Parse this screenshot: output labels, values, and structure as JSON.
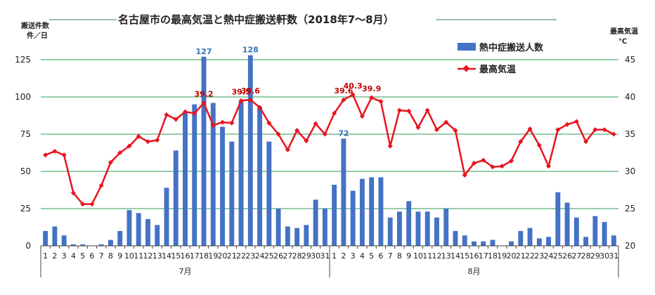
{
  "chart_data": {
    "type": "bar+line",
    "title": "名古屋市の最高気温と熱中症搬送軒数（2018年7〜8月）",
    "left_axis_title": [
      "搬送件数",
      "件／日"
    ],
    "right_axis_title": [
      "最高気温",
      "℃"
    ],
    "left_ylim": [
      0,
      125
    ],
    "left_ticks": [
      "0",
      "25",
      "50",
      "75",
      "100",
      "125"
    ],
    "right_ylim": [
      20,
      45
    ],
    "right_ticks": [
      "20",
      "25",
      "30",
      "35",
      "40",
      "45"
    ],
    "grid": true,
    "legend_position": "top-right",
    "months": [
      "7月",
      "8月"
    ],
    "categories": [
      "1",
      "2",
      "3",
      "4",
      "5",
      "6",
      "7",
      "8",
      "9",
      "10",
      "11",
      "12",
      "13",
      "14",
      "15",
      "16",
      "17",
      "18",
      "19",
      "20",
      "21",
      "22",
      "23",
      "24",
      "25",
      "26",
      "27",
      "28",
      "29",
      "30",
      "31",
      "1",
      "2",
      "3",
      "4",
      "5",
      "6",
      "7",
      "8",
      "9",
      "10",
      "11",
      "12",
      "13",
      "14",
      "15",
      "16",
      "17",
      "18",
      "19",
      "20",
      "21",
      "22",
      "23",
      "24",
      "25",
      "26",
      "27",
      "28",
      "29",
      "30",
      "31"
    ],
    "series": [
      {
        "name": "熱中症搬送人数",
        "kind": "bar",
        "axis": "left",
        "color": "#4472c4",
        "values": [
          10,
          13,
          7,
          1,
          1,
          0,
          1,
          4,
          10,
          24,
          22,
          18,
          14,
          39,
          64,
          90,
          95,
          127,
          96,
          80,
          70,
          97,
          128,
          93,
          70,
          25,
          13,
          12,
          14,
          31,
          25,
          41,
          72,
          37,
          45,
          46,
          46,
          19,
          23,
          30,
          23,
          23,
          19,
          25,
          10,
          7,
          3,
          3,
          4,
          0,
          3,
          10,
          12,
          5,
          6,
          36,
          29,
          19,
          6,
          20,
          16,
          7
        ]
      },
      {
        "name": "最高気温",
        "kind": "line",
        "axis": "right",
        "color": "#e8141e",
        "values": [
          32.2,
          32.7,
          32.2,
          27.1,
          25.6,
          25.6,
          28.1,
          31.2,
          32.5,
          33.4,
          34.7,
          34.0,
          34.2,
          37.6,
          37.0,
          38.0,
          37.8,
          39.2,
          36.2,
          36.6,
          36.5,
          39.5,
          39.6,
          38.6,
          36.5,
          35.0,
          32.9,
          35.5,
          34.1,
          36.4,
          35.0,
          37.8,
          39.6,
          40.3,
          37.4,
          39.9,
          39.4,
          33.4,
          38.2,
          38.1,
          35.9,
          38.2,
          35.6,
          36.6,
          35.5,
          29.5,
          31.1,
          31.5,
          30.6,
          30.7,
          31.4,
          34.0,
          35.7,
          33.5,
          30.7,
          35.6,
          36.3,
          36.7,
          34.0,
          35.6,
          35.6,
          35.0
        ]
      }
    ],
    "data_labels": {
      "bar": [
        {
          "index": 17,
          "text": "127"
        },
        {
          "index": 22,
          "text": "128"
        },
        {
          "index": 32,
          "text": "72"
        }
      ],
      "line": [
        {
          "index": 17,
          "text": "39.2"
        },
        {
          "index": 21,
          "text": "39.5"
        },
        {
          "index": 22,
          "text": "39.6"
        },
        {
          "index": 32,
          "text": "39.6"
        },
        {
          "index": 33,
          "text": "40.3"
        },
        {
          "index": 35,
          "text": "39.9"
        }
      ]
    }
  }
}
